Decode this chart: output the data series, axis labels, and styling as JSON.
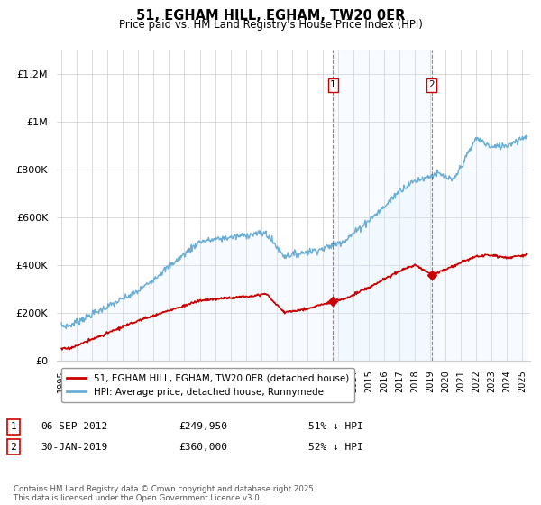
{
  "title": "51, EGHAM HILL, EGHAM, TW20 0ER",
  "subtitle": "Price paid vs. HM Land Registry's House Price Index (HPI)",
  "ylabel_ticks": [
    "£0",
    "£200K",
    "£400K",
    "£600K",
    "£800K",
    "£1M",
    "£1.2M"
  ],
  "ytick_values": [
    0,
    200000,
    400000,
    600000,
    800000,
    1000000,
    1200000
  ],
  "ylim": [
    0,
    1300000
  ],
  "xlim_start": 1994.7,
  "xlim_end": 2025.5,
  "hpi_color": "#6aaed6",
  "hpi_fill_color": "#ddeeff",
  "price_color": "#cc0000",
  "transaction1_date": 2012.68,
  "transaction1_price": 249950,
  "transaction2_date": 2019.08,
  "transaction2_price": 360000,
  "legend_label1": "51, EGHAM HILL, EGHAM, TW20 0ER (detached house)",
  "legend_label2": "HPI: Average price, detached house, Runnymede",
  "note1_date": "06-SEP-2012",
  "note1_price": "£249,950",
  "note1_pct": "51% ↓ HPI",
  "note2_date": "30-JAN-2019",
  "note2_price": "£360,000",
  "note2_pct": "52% ↓ HPI",
  "footer": "Contains HM Land Registry data © Crown copyright and database right 2025.\nThis data is licensed under the Open Government Licence v3.0.",
  "background_color": "#ffffff",
  "grid_color": "#cccccc"
}
